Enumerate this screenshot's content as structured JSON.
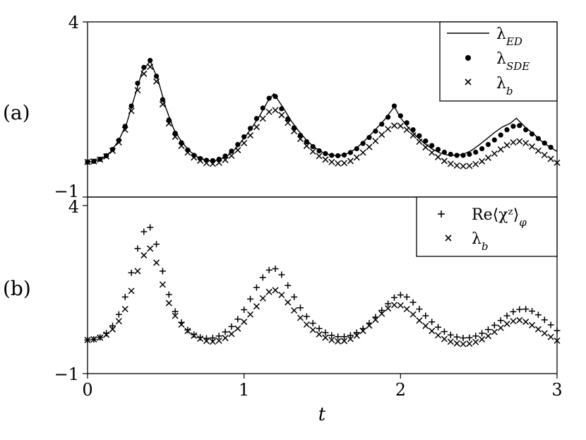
{
  "chart_data": [
    {
      "type": "line",
      "panel_label": "(a)",
      "xlim": [
        0,
        3
      ],
      "ylim": [
        -1,
        4
      ],
      "yticks": [
        "4",
        "−1"
      ],
      "xticks": [],
      "xlabel": "",
      "ylabel": "",
      "grid": false,
      "legend": {
        "placement": "top-right",
        "entries": [
          "λ_ED",
          "λ_SDE",
          "λ_b"
        ]
      },
      "series": [
        {
          "name": "λ_ED",
          "style": "line",
          "x": [
            0.0,
            0.05,
            0.1,
            0.15,
            0.2,
            0.25,
            0.3,
            0.35,
            0.4,
            0.45,
            0.5,
            0.55,
            0.6,
            0.65,
            0.7,
            0.75,
            0.8,
            0.85,
            0.9,
            0.95,
            1.0,
            1.05,
            1.1,
            1.15,
            1.19,
            1.25,
            1.3,
            1.35,
            1.4,
            1.45,
            1.5,
            1.55,
            1.6,
            1.65,
            1.7,
            1.75,
            1.8,
            1.85,
            1.9,
            1.96,
            2.0,
            2.05,
            2.1,
            2.15,
            2.2,
            2.25,
            2.3,
            2.35,
            2.4,
            2.45,
            2.5,
            2.55,
            2.6,
            2.65,
            2.7,
            2.74,
            2.8,
            2.85,
            2.9,
            2.95,
            3.0
          ],
          "y": [
            0.0,
            0.03,
            0.12,
            0.3,
            0.62,
            1.1,
            1.85,
            2.6,
            2.88,
            2.35,
            1.55,
            0.95,
            0.58,
            0.32,
            0.15,
            0.06,
            0.03,
            0.08,
            0.2,
            0.4,
            0.68,
            0.98,
            1.32,
            1.72,
            1.95,
            1.55,
            1.18,
            0.88,
            0.62,
            0.42,
            0.28,
            0.2,
            0.18,
            0.22,
            0.34,
            0.52,
            0.74,
            0.98,
            1.22,
            1.58,
            1.26,
            0.98,
            0.74,
            0.54,
            0.38,
            0.26,
            0.2,
            0.19,
            0.22,
            0.32,
            0.48,
            0.66,
            0.84,
            1.0,
            1.1,
            1.25,
            0.98,
            0.8,
            0.6,
            0.44,
            0.3
          ]
        },
        {
          "name": "λ_SDE",
          "style": "markers-dot",
          "x": [
            0.0,
            0.04,
            0.08,
            0.12,
            0.16,
            0.2,
            0.24,
            0.28,
            0.32,
            0.36,
            0.4,
            0.44,
            0.48,
            0.52,
            0.56,
            0.6,
            0.64,
            0.68,
            0.72,
            0.76,
            0.8,
            0.84,
            0.88,
            0.92,
            0.96,
            1.0,
            1.04,
            1.08,
            1.12,
            1.16,
            1.2,
            1.24,
            1.28,
            1.32,
            1.36,
            1.4,
            1.44,
            1.48,
            1.52,
            1.56,
            1.6,
            1.64,
            1.68,
            1.72,
            1.76,
            1.8,
            1.84,
            1.88,
            1.92,
            1.96,
            2.0,
            2.04,
            2.08,
            2.12,
            2.16,
            2.2,
            2.24,
            2.28,
            2.32,
            2.36,
            2.4,
            2.44,
            2.48,
            2.52,
            2.56,
            2.6,
            2.64,
            2.68,
            2.72,
            2.76,
            2.8,
            2.84,
            2.88,
            2.92,
            2.96
          ],
          "y": [
            0.0,
            0.02,
            0.08,
            0.18,
            0.36,
            0.62,
            1.02,
            1.6,
            2.25,
            2.7,
            2.9,
            2.45,
            1.78,
            1.2,
            0.82,
            0.55,
            0.34,
            0.19,
            0.1,
            0.05,
            0.04,
            0.08,
            0.17,
            0.31,
            0.5,
            0.72,
            0.96,
            1.24,
            1.54,
            1.82,
            1.87,
            1.52,
            1.23,
            0.98,
            0.76,
            0.58,
            0.44,
            0.32,
            0.24,
            0.19,
            0.18,
            0.2,
            0.27,
            0.38,
            0.53,
            0.7,
            0.88,
            1.08,
            1.28,
            1.6,
            1.32,
            1.12,
            0.92,
            0.75,
            0.6,
            0.47,
            0.36,
            0.28,
            0.22,
            0.19,
            0.19,
            0.22,
            0.28,
            0.38,
            0.5,
            0.63,
            0.77,
            0.92,
            1.02,
            1.04,
            0.92,
            0.8,
            0.67,
            0.54,
            0.42
          ]
        },
        {
          "name": "λ_b",
          "style": "markers-x",
          "x": [
            0.0,
            0.04,
            0.08,
            0.12,
            0.16,
            0.2,
            0.24,
            0.28,
            0.32,
            0.36,
            0.4,
            0.44,
            0.48,
            0.52,
            0.56,
            0.6,
            0.64,
            0.68,
            0.72,
            0.76,
            0.8,
            0.84,
            0.88,
            0.92,
            0.96,
            1.0,
            1.04,
            1.08,
            1.12,
            1.16,
            1.2,
            1.24,
            1.28,
            1.32,
            1.36,
            1.4,
            1.44,
            1.48,
            1.52,
            1.56,
            1.6,
            1.64,
            1.68,
            1.72,
            1.76,
            1.8,
            1.84,
            1.88,
            1.92,
            1.96,
            2.0,
            2.04,
            2.08,
            2.12,
            2.16,
            2.2,
            2.24,
            2.28,
            2.32,
            2.36,
            2.4,
            2.44,
            2.48,
            2.52,
            2.56,
            2.6,
            2.64,
            2.68,
            2.72,
            2.76,
            2.8,
            2.84,
            2.88,
            2.92,
            2.96,
            3.0
          ],
          "y": [
            0.0,
            0.02,
            0.07,
            0.16,
            0.32,
            0.56,
            0.92,
            1.46,
            2.05,
            2.52,
            2.72,
            2.3,
            1.65,
            1.1,
            0.72,
            0.46,
            0.27,
            0.13,
            0.04,
            -0.03,
            -0.05,
            -0.02,
            0.06,
            0.18,
            0.34,
            0.54,
            0.76,
            1.0,
            1.24,
            1.43,
            1.48,
            1.34,
            1.12,
            0.88,
            0.66,
            0.46,
            0.3,
            0.17,
            0.07,
            0.0,
            -0.04,
            -0.03,
            0.03,
            0.13,
            0.27,
            0.43,
            0.6,
            0.78,
            0.94,
            1.04,
            1.03,
            0.92,
            0.76,
            0.58,
            0.42,
            0.27,
            0.14,
            0.03,
            -0.05,
            -0.1,
            -0.12,
            -0.11,
            -0.06,
            0.02,
            0.12,
            0.24,
            0.36,
            0.48,
            0.56,
            0.59,
            0.54,
            0.44,
            0.32,
            0.2,
            0.09,
            -0.02
          ]
        }
      ]
    },
    {
      "type": "scatter",
      "panel_label": "(b)",
      "xlim": [
        0,
        3
      ],
      "ylim": [
        -1,
        4
      ],
      "yticks": [
        "4",
        "−1"
      ],
      "xticks": [
        "0",
        "1",
        "2",
        "3"
      ],
      "xlabel": "t",
      "ylabel": "",
      "grid": false,
      "legend": {
        "placement": "top-right",
        "entries": [
          "Re⟨χᶻ⟩_φ",
          "λ_b"
        ]
      },
      "series": [
        {
          "name": "Re⟨χᶻ⟩_φ",
          "style": "markers-plus",
          "x": [
            0.0,
            0.04,
            0.08,
            0.12,
            0.16,
            0.2,
            0.24,
            0.28,
            0.32,
            0.36,
            0.4,
            0.44,
            0.48,
            0.52,
            0.56,
            0.6,
            0.64,
            0.68,
            0.72,
            0.76,
            0.8,
            0.84,
            0.88,
            0.92,
            0.96,
            1.0,
            1.04,
            1.08,
            1.12,
            1.16,
            1.2,
            1.24,
            1.28,
            1.32,
            1.36,
            1.4,
            1.44,
            1.48,
            1.52,
            1.56,
            1.6,
            1.64,
            1.68,
            1.72,
            1.76,
            1.8,
            1.84,
            1.88,
            1.92,
            1.96,
            2.0,
            2.04,
            2.08,
            2.12,
            2.16,
            2.2,
            2.24,
            2.28,
            2.32,
            2.36,
            2.4,
            2.44,
            2.48,
            2.52,
            2.56,
            2.6,
            2.64,
            2.68,
            2.72,
            2.76,
            2.8,
            2.84,
            2.88,
            2.92,
            2.96,
            3.0
          ],
          "y": [
            0.0,
            0.02,
            0.08,
            0.2,
            0.42,
            0.76,
            1.28,
            2.0,
            2.72,
            3.22,
            3.35,
            2.85,
            2.05,
            1.35,
            0.85,
            0.52,
            0.3,
            0.16,
            0.08,
            0.05,
            0.06,
            0.12,
            0.24,
            0.4,
            0.62,
            0.9,
            1.22,
            1.56,
            1.86,
            2.08,
            2.12,
            1.94,
            1.62,
            1.28,
            0.96,
            0.7,
            0.5,
            0.34,
            0.22,
            0.14,
            0.1,
            0.1,
            0.14,
            0.22,
            0.34,
            0.5,
            0.68,
            0.88,
            1.08,
            1.26,
            1.34,
            1.28,
            1.12,
            0.92,
            0.72,
            0.54,
            0.38,
            0.25,
            0.15,
            0.09,
            0.06,
            0.07,
            0.12,
            0.2,
            0.31,
            0.44,
            0.58,
            0.72,
            0.84,
            0.91,
            0.92,
            0.86,
            0.75,
            0.6,
            0.45,
            0.28
          ]
        },
        {
          "name": "λ_b",
          "style": "markers-x",
          "x": [
            0.0,
            0.04,
            0.08,
            0.12,
            0.16,
            0.2,
            0.24,
            0.28,
            0.32,
            0.36,
            0.4,
            0.44,
            0.48,
            0.52,
            0.56,
            0.6,
            0.64,
            0.68,
            0.72,
            0.76,
            0.8,
            0.84,
            0.88,
            0.92,
            0.96,
            1.0,
            1.04,
            1.08,
            1.12,
            1.16,
            1.2,
            1.24,
            1.28,
            1.32,
            1.36,
            1.4,
            1.44,
            1.48,
            1.52,
            1.56,
            1.6,
            1.64,
            1.68,
            1.72,
            1.76,
            1.8,
            1.84,
            1.88,
            1.92,
            1.96,
            2.0,
            2.04,
            2.08,
            2.12,
            2.16,
            2.2,
            2.24,
            2.28,
            2.32,
            2.36,
            2.4,
            2.44,
            2.48,
            2.52,
            2.56,
            2.6,
            2.64,
            2.68,
            2.72,
            2.76,
            2.8,
            2.84,
            2.88,
            2.92,
            2.96,
            3.0
          ],
          "y": [
            0.0,
            0.02,
            0.07,
            0.16,
            0.32,
            0.56,
            0.92,
            1.46,
            2.05,
            2.52,
            2.72,
            2.3,
            1.65,
            1.1,
            0.72,
            0.46,
            0.27,
            0.13,
            0.04,
            -0.03,
            -0.05,
            -0.02,
            0.06,
            0.18,
            0.34,
            0.54,
            0.76,
            1.0,
            1.24,
            1.43,
            1.48,
            1.34,
            1.12,
            0.88,
            0.66,
            0.46,
            0.3,
            0.17,
            0.07,
            0.0,
            -0.04,
            -0.03,
            0.03,
            0.13,
            0.27,
            0.43,
            0.6,
            0.78,
            0.94,
            1.04,
            1.03,
            0.92,
            0.76,
            0.58,
            0.42,
            0.27,
            0.14,
            0.03,
            -0.05,
            -0.1,
            -0.12,
            -0.11,
            -0.06,
            0.02,
            0.12,
            0.24,
            0.36,
            0.48,
            0.56,
            0.59,
            0.54,
            0.44,
            0.32,
            0.2,
            0.09,
            -0.02
          ]
        }
      ]
    }
  ]
}
